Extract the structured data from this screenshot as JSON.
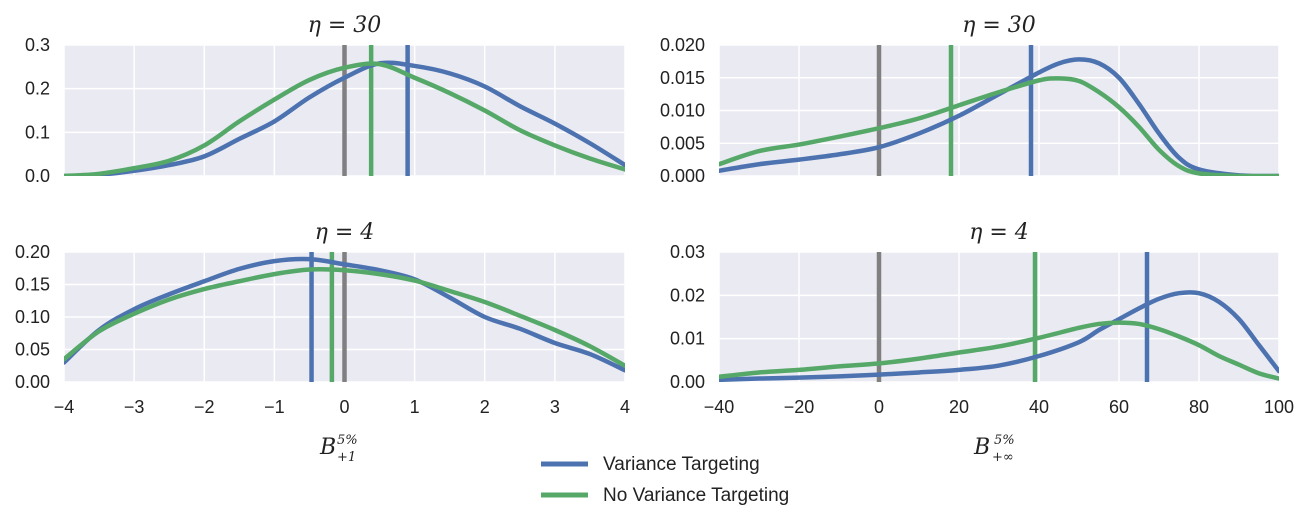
{
  "colors": {
    "vt": "#4c72b0",
    "nvt": "#55a868",
    "ref": "#808080",
    "panel_bg": "#eaeaf2",
    "grid": "#ffffff"
  },
  "legend": {
    "items": [
      {
        "label": "Variance Targeting",
        "color": "#4c72b0"
      },
      {
        "label": "No Variance Targeting",
        "color": "#55a868"
      }
    ]
  },
  "xlabels": {
    "left": {
      "base": "B",
      "sup": "5%",
      "sub": "+1"
    },
    "right": {
      "base": "B",
      "sup": "5%",
      "sub": "+∞"
    }
  },
  "chart_data": [
    {
      "type": "line",
      "title": "η = 30",
      "xlim": [
        -4,
        4
      ],
      "ylim": [
        0,
        0.3
      ],
      "xticks": [
        -4,
        -3,
        -2,
        -1,
        0,
        1,
        2,
        3,
        4
      ],
      "yticks": [
        0.0,
        0.1,
        0.2,
        0.3
      ],
      "ytick_labels": [
        "0.0",
        "0.1",
        "0.2",
        "0.3"
      ],
      "show_xtick_labels": false,
      "grid": true,
      "vlines": [
        {
          "x": 0,
          "color": "#808080"
        },
        {
          "x": 0.38,
          "color": "#55a868"
        },
        {
          "x": 0.9,
          "color": "#4c72b0"
        }
      ],
      "series": [
        {
          "color": "#4c72b0",
          "x": [
            -4,
            -3.5,
            -3,
            -2.5,
            -2,
            -1.5,
            -1,
            -0.5,
            0,
            0.5,
            1,
            1.5,
            2,
            2.5,
            3,
            3.5,
            4
          ],
          "y": [
            0.0,
            0.003,
            0.012,
            0.025,
            0.045,
            0.085,
            0.125,
            0.18,
            0.225,
            0.258,
            0.252,
            0.235,
            0.205,
            0.16,
            0.12,
            0.075,
            0.025
          ]
        },
        {
          "color": "#55a868",
          "x": [
            -4,
            -3.5,
            -3,
            -2.5,
            -2,
            -1.5,
            -1,
            -0.5,
            0,
            0.5,
            1,
            1.5,
            2,
            2.5,
            3,
            3.5,
            4
          ],
          "y": [
            0.0,
            0.005,
            0.018,
            0.035,
            0.07,
            0.125,
            0.175,
            0.22,
            0.248,
            0.256,
            0.225,
            0.19,
            0.15,
            0.105,
            0.07,
            0.04,
            0.015
          ]
        }
      ]
    },
    {
      "type": "line",
      "title": "η = 30",
      "xlim": [
        -40,
        100
      ],
      "ylim": [
        0,
        0.02
      ],
      "xticks": [
        -40,
        -20,
        0,
        20,
        40,
        60,
        80,
        100
      ],
      "yticks": [
        0.0,
        0.005,
        0.01,
        0.015,
        0.02
      ],
      "ytick_labels": [
        "0.000",
        "0.005",
        "0.010",
        "0.015",
        "0.020"
      ],
      "show_xtick_labels": false,
      "grid": true,
      "vlines": [
        {
          "x": 0,
          "color": "#808080"
        },
        {
          "x": 18,
          "color": "#55a868"
        },
        {
          "x": 38,
          "color": "#4c72b0"
        }
      ],
      "series": [
        {
          "color": "#4c72b0",
          "x": [
            -40,
            -30,
            -20,
            -10,
            0,
            10,
            20,
            30,
            40,
            45,
            50,
            55,
            60,
            65,
            70,
            75,
            80,
            90,
            100
          ],
          "y": [
            0.0008,
            0.0018,
            0.0025,
            0.0033,
            0.0044,
            0.0065,
            0.0092,
            0.0125,
            0.0158,
            0.0172,
            0.0178,
            0.0172,
            0.015,
            0.011,
            0.0065,
            0.0028,
            0.001,
            0.0001,
            0.0
          ]
        },
        {
          "color": "#55a868",
          "x": [
            -40,
            -30,
            -20,
            -10,
            0,
            10,
            20,
            30,
            40,
            45,
            50,
            55,
            60,
            65,
            70,
            75,
            80,
            90,
            100
          ],
          "y": [
            0.0018,
            0.0038,
            0.0048,
            0.006,
            0.0073,
            0.0088,
            0.0108,
            0.0128,
            0.0146,
            0.0149,
            0.0145,
            0.0128,
            0.0105,
            0.0075,
            0.004,
            0.0015,
            0.0004,
            0.0,
            0.0
          ]
        }
      ]
    },
    {
      "type": "line",
      "title": "η = 4",
      "xlim": [
        -4,
        4
      ],
      "ylim": [
        0,
        0.2
      ],
      "xticks": [
        -4,
        -3,
        -2,
        -1,
        0,
        1,
        2,
        3,
        4
      ],
      "yticks": [
        0.0,
        0.05,
        0.1,
        0.15,
        0.2
      ],
      "ytick_labels": [
        "0.00",
        "0.05",
        "0.10",
        "0.15",
        "0.20"
      ],
      "xtick_labels": [
        "−4",
        "−3",
        "−2",
        "−1",
        "0",
        "1",
        "2",
        "3",
        "4"
      ],
      "show_xtick_labels": true,
      "grid": true,
      "vlines": [
        {
          "x": 0,
          "color": "#808080"
        },
        {
          "x": -0.18,
          "color": "#55a868"
        },
        {
          "x": -0.47,
          "color": "#4c72b0"
        }
      ],
      "series": [
        {
          "color": "#4c72b0",
          "x": [
            -4,
            -3.5,
            -3,
            -2.5,
            -2,
            -1.5,
            -1,
            -0.5,
            0,
            0.5,
            1,
            1.5,
            2,
            2.5,
            3,
            3.5,
            4
          ],
          "y": [
            0.03,
            0.08,
            0.112,
            0.135,
            0.155,
            0.174,
            0.186,
            0.189,
            0.181,
            0.172,
            0.158,
            0.13,
            0.1,
            0.082,
            0.06,
            0.043,
            0.018
          ]
        },
        {
          "color": "#55a868",
          "x": [
            -4,
            -3.5,
            -3,
            -2.5,
            -2,
            -1.5,
            -1,
            -0.5,
            0,
            0.5,
            1,
            1.5,
            2,
            2.5,
            3,
            3.5,
            4
          ],
          "y": [
            0.035,
            0.078,
            0.105,
            0.127,
            0.143,
            0.155,
            0.166,
            0.173,
            0.172,
            0.166,
            0.156,
            0.14,
            0.123,
            0.102,
            0.08,
            0.055,
            0.025
          ]
        }
      ]
    },
    {
      "type": "line",
      "title": "η = 4",
      "xlim": [
        -40,
        100
      ],
      "ylim": [
        0,
        0.03
      ],
      "xticks": [
        -40,
        -20,
        0,
        20,
        40,
        60,
        80,
        100
      ],
      "yticks": [
        0.0,
        0.01,
        0.02,
        0.03
      ],
      "ytick_labels": [
        "0.00",
        "0.01",
        "0.02",
        "0.03"
      ],
      "xtick_labels": [
        "−40",
        "−20",
        "0",
        "20",
        "40",
        "60",
        "80",
        "100"
      ],
      "show_xtick_labels": true,
      "grid": true,
      "vlines": [
        {
          "x": 0,
          "color": "#808080"
        },
        {
          "x": 39,
          "color": "#55a868"
        },
        {
          "x": 67,
          "color": "#4c72b0"
        }
      ],
      "series": [
        {
          "color": "#4c72b0",
          "x": [
            -40,
            -30,
            -20,
            -10,
            0,
            10,
            20,
            30,
            40,
            50,
            55,
            60,
            65,
            70,
            75,
            80,
            85,
            90,
            95,
            100
          ],
          "y": [
            0.0005,
            0.0008,
            0.001,
            0.0013,
            0.0017,
            0.0022,
            0.0028,
            0.0038,
            0.006,
            0.0092,
            0.012,
            0.0145,
            0.017,
            0.0192,
            0.0205,
            0.0205,
            0.0185,
            0.0145,
            0.0085,
            0.0025
          ]
        },
        {
          "color": "#55a868",
          "x": [
            -40,
            -30,
            -20,
            -10,
            0,
            10,
            20,
            30,
            40,
            50,
            55,
            60,
            65,
            70,
            75,
            80,
            85,
            90,
            95,
            100
          ],
          "y": [
            0.0012,
            0.0022,
            0.0028,
            0.0036,
            0.0043,
            0.0054,
            0.0068,
            0.0082,
            0.0102,
            0.0125,
            0.0134,
            0.0137,
            0.0134,
            0.0122,
            0.0105,
            0.0085,
            0.006,
            0.004,
            0.002,
            0.0008
          ]
        }
      ]
    }
  ]
}
